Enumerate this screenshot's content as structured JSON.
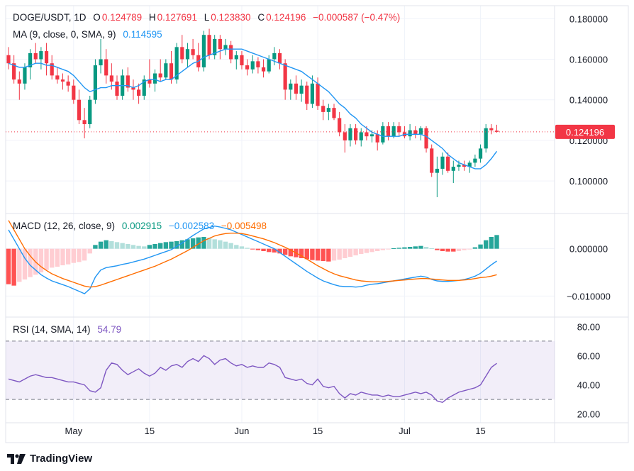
{
  "header": {
    "symbol": "DOGE/USDT, 1D",
    "open_label": "O",
    "open": "0.124789",
    "high_label": "H",
    "high": "0.127691",
    "low_label": "L",
    "low": "0.123830",
    "close_label": "C",
    "close": "0.124196",
    "change": "−0.000587 (−0.47%)"
  },
  "ma_legend": {
    "label": "MA (9, close, 0, SMA, 9)",
    "value": "0.114595"
  },
  "macd_legend": {
    "label": "MACD (12, 26, close, 9)",
    "hist": "0.002915",
    "macd": "−0.002583",
    "signal": "−0.005498"
  },
  "rsi_legend": {
    "label": "RSI (14, SMA, 14)",
    "value": "54.79"
  },
  "price_axis": {
    "ticks": [
      "0.180000",
      "0.160000",
      "0.140000",
      "0.120000",
      "0.100000"
    ],
    "last_price": "0.124196"
  },
  "macd_axis": {
    "ticks": [
      "0.000000",
      "−0.010000"
    ]
  },
  "rsi_axis": {
    "ticks": [
      "80.00",
      "60.00",
      "40.00",
      "20.00"
    ]
  },
  "time_axis": {
    "ticks": [
      "May",
      "15",
      "Jun",
      "15",
      "Jul",
      "15"
    ]
  },
  "brand": {
    "name": "TradingView"
  },
  "colors": {
    "up": "#089981",
    "down": "#f23645",
    "ma": "#2196f3",
    "macd": "#2196f3",
    "signal": "#ff6d00",
    "rsi": "#7e57c2"
  },
  "chart_data": [
    {
      "type": "candlestick",
      "price_range": [
        0.085,
        0.185
      ],
      "x_start": "2024-04-19",
      "candles": [
        [
          0.162,
          0.166,
          0.155,
          0.158
        ],
        [
          0.158,
          0.162,
          0.148,
          0.15
        ],
        [
          0.15,
          0.154,
          0.14,
          0.148
        ],
        [
          0.148,
          0.158,
          0.145,
          0.156
        ],
        [
          0.156,
          0.165,
          0.15,
          0.163
        ],
        [
          0.163,
          0.168,
          0.158,
          0.16
        ],
        [
          0.16,
          0.166,
          0.155,
          0.164
        ],
        [
          0.164,
          0.168,
          0.152,
          0.158
        ],
        [
          0.158,
          0.162,
          0.15,
          0.152
        ],
        [
          0.152,
          0.156,
          0.148,
          0.15
        ],
        [
          0.15,
          0.153,
          0.145,
          0.149
        ],
        [
          0.149,
          0.152,
          0.144,
          0.147
        ],
        [
          0.147,
          0.15,
          0.138,
          0.14
        ],
        [
          0.14,
          0.145,
          0.128,
          0.13
        ],
        [
          0.13,
          0.136,
          0.121,
          0.128
        ],
        [
          0.128,
          0.142,
          0.126,
          0.14
        ],
        [
          0.14,
          0.16,
          0.138,
          0.157
        ],
        [
          0.157,
          0.17,
          0.153,
          0.16
        ],
        [
          0.16,
          0.165,
          0.148,
          0.152
        ],
        [
          0.152,
          0.158,
          0.145,
          0.149
        ],
        [
          0.149,
          0.152,
          0.14,
          0.142
        ],
        [
          0.142,
          0.155,
          0.14,
          0.152
        ],
        [
          0.152,
          0.156,
          0.144,
          0.146
        ],
        [
          0.146,
          0.15,
          0.14,
          0.145
        ],
        [
          0.145,
          0.148,
          0.138,
          0.142
        ],
        [
          0.142,
          0.152,
          0.14,
          0.15
        ],
        [
          0.15,
          0.16,
          0.146,
          0.148
        ],
        [
          0.148,
          0.155,
          0.144,
          0.153
        ],
        [
          0.153,
          0.16,
          0.149,
          0.151
        ],
        [
          0.151,
          0.16,
          0.15,
          0.158
        ],
        [
          0.158,
          0.164,
          0.148,
          0.15
        ],
        [
          0.15,
          0.168,
          0.148,
          0.166
        ],
        [
          0.166,
          0.172,
          0.158,
          0.16
        ],
        [
          0.16,
          0.168,
          0.156,
          0.165
        ],
        [
          0.165,
          0.17,
          0.16,
          0.162
        ],
        [
          0.162,
          0.168,
          0.154,
          0.156
        ],
        [
          0.156,
          0.174,
          0.154,
          0.172
        ],
        [
          0.172,
          0.175,
          0.16,
          0.162
        ],
        [
          0.162,
          0.172,
          0.16,
          0.17
        ],
        [
          0.17,
          0.172,
          0.16,
          0.165
        ],
        [
          0.165,
          0.17,
          0.162,
          0.167
        ],
        [
          0.167,
          0.169,
          0.158,
          0.16
        ],
        [
          0.16,
          0.164,
          0.155,
          0.162
        ],
        [
          0.162,
          0.164,
          0.155,
          0.157
        ],
        [
          0.157,
          0.16,
          0.152,
          0.155
        ],
        [
          0.155,
          0.162,
          0.153,
          0.159
        ],
        [
          0.159,
          0.161,
          0.153,
          0.156
        ],
        [
          0.156,
          0.16,
          0.151,
          0.154
        ],
        [
          0.154,
          0.162,
          0.153,
          0.16
        ],
        [
          0.16,
          0.166,
          0.157,
          0.163
        ],
        [
          0.163,
          0.165,
          0.155,
          0.158
        ],
        [
          0.158,
          0.16,
          0.14,
          0.145
        ],
        [
          0.145,
          0.15,
          0.14,
          0.148
        ],
        [
          0.148,
          0.152,
          0.14,
          0.143
        ],
        [
          0.143,
          0.15,
          0.139,
          0.147
        ],
        [
          0.147,
          0.149,
          0.135,
          0.138
        ],
        [
          0.138,
          0.152,
          0.136,
          0.148
        ],
        [
          0.148,
          0.151,
          0.135,
          0.137
        ],
        [
          0.137,
          0.14,
          0.13,
          0.134
        ],
        [
          0.134,
          0.138,
          0.13,
          0.136
        ],
        [
          0.136,
          0.138,
          0.13,
          0.131
        ],
        [
          0.131,
          0.134,
          0.122,
          0.124
        ],
        [
          0.124,
          0.128,
          0.114,
          0.12
        ],
        [
          0.12,
          0.128,
          0.117,
          0.126
        ],
        [
          0.126,
          0.128,
          0.118,
          0.12
        ],
        [
          0.12,
          0.126,
          0.117,
          0.124
        ],
        [
          0.124,
          0.127,
          0.12,
          0.122
        ],
        [
          0.122,
          0.125,
          0.119,
          0.123
        ],
        [
          0.123,
          0.125,
          0.115,
          0.119
        ],
        [
          0.119,
          0.129,
          0.118,
          0.127
        ],
        [
          0.127,
          0.129,
          0.12,
          0.122
        ],
        [
          0.122,
          0.129,
          0.121,
          0.127
        ],
        [
          0.127,
          0.129,
          0.122,
          0.124
        ],
        [
          0.124,
          0.127,
          0.121,
          0.122
        ],
        [
          0.122,
          0.128,
          0.12,
          0.125
        ],
        [
          0.125,
          0.127,
          0.121,
          0.123
        ],
        [
          0.123,
          0.127,
          0.12,
          0.126
        ],
        [
          0.126,
          0.127,
          0.114,
          0.116
        ],
        [
          0.116,
          0.118,
          0.102,
          0.104
        ],
        [
          0.104,
          0.112,
          0.092,
          0.106
        ],
        [
          0.106,
          0.114,
          0.103,
          0.112
        ],
        [
          0.112,
          0.114,
          0.104,
          0.105
        ],
        [
          0.105,
          0.11,
          0.099,
          0.107
        ],
        [
          0.107,
          0.11,
          0.105,
          0.108
        ],
        [
          0.108,
          0.11,
          0.105,
          0.107
        ],
        [
          0.107,
          0.11,
          0.104,
          0.109
        ],
        [
          0.109,
          0.113,
          0.107,
          0.111
        ],
        [
          0.111,
          0.118,
          0.109,
          0.116
        ],
        [
          0.116,
          0.128,
          0.114,
          0.126
        ],
        [
          0.126,
          0.128,
          0.123,
          0.125
        ],
        [
          0.124789,
          0.127691,
          0.12383,
          0.124196
        ]
      ],
      "ma_values": [
        0.158,
        0.157,
        0.156,
        0.156,
        0.157,
        0.158,
        0.158,
        0.157,
        0.157,
        0.156,
        0.155,
        0.154,
        0.152,
        0.149,
        0.146,
        0.144,
        0.145,
        0.146,
        0.146,
        0.147,
        0.147,
        0.147,
        0.147,
        0.146,
        0.147,
        0.149,
        0.15,
        0.15,
        0.149,
        0.15,
        0.15,
        0.152,
        0.154,
        0.156,
        0.158,
        0.159,
        0.161,
        0.162,
        0.163,
        0.164,
        0.165,
        0.165,
        0.165,
        0.165,
        0.164,
        0.163,
        0.162,
        0.161,
        0.16,
        0.159,
        0.158,
        0.157,
        0.156,
        0.155,
        0.154,
        0.152,
        0.15,
        0.148,
        0.146,
        0.144,
        0.141,
        0.138,
        0.136,
        0.133,
        0.131,
        0.128,
        0.126,
        0.124,
        0.123,
        0.122,
        0.122,
        0.122,
        0.122,
        0.123,
        0.123,
        0.123,
        0.123,
        0.122,
        0.12,
        0.118,
        0.116,
        0.113,
        0.111,
        0.109,
        0.108,
        0.107,
        0.106,
        0.106,
        0.108,
        0.111,
        0.1146
      ],
      "last_price": 0.124196
    },
    {
      "type": "macd",
      "range": [
        -0.014,
        0.007
      ],
      "histogram": [
        -0.0075,
        -0.0078,
        -0.007,
        -0.0065,
        -0.006,
        -0.0055,
        -0.005,
        -0.0045,
        -0.004,
        -0.0038,
        -0.0035,
        -0.0033,
        -0.003,
        -0.0028,
        -0.0025,
        -0.001,
        0.0008,
        0.0015,
        0.0018,
        0.0016,
        0.0014,
        0.0012,
        0.001,
        0.0008,
        0.0006,
        0.0005,
        0.0008,
        0.001,
        0.0012,
        0.0014,
        0.0015,
        0.0016,
        0.0018,
        0.002,
        0.0022,
        0.0024,
        0.0025,
        0.0023,
        0.002,
        0.0018,
        0.0015,
        0.0012,
        0.0008,
        0.0005,
        0.0002,
        -0.0001,
        -0.0003,
        -0.0005,
        -0.0007,
        -0.0008,
        -0.001,
        -0.0013,
        -0.0016,
        -0.0018,
        -0.002,
        -0.0022,
        -0.0024,
        -0.0025,
        -0.0026,
        -0.0027,
        -0.0025,
        -0.0023,
        -0.002,
        -0.0017,
        -0.0014,
        -0.0011,
        -0.0009,
        -0.0007,
        -0.0005,
        -0.0003,
        -0.0001,
        0.0001,
        0.0002,
        0.0003,
        0.0004,
        0.0005,
        0.0006,
        0.0004,
        0.0001,
        -0.0003,
        -0.0005,
        -0.0006,
        -0.0006,
        -0.0005,
        -0.0003,
        -0.0001,
        0.0003,
        0.0009,
        0.0018,
        0.0025,
        0.0029
      ],
      "macd_values": [
        0.004,
        0.002,
        0.0,
        -0.002,
        -0.0035,
        -0.0045,
        -0.0055,
        -0.0062,
        -0.0068,
        -0.0072,
        -0.0076,
        -0.008,
        -0.0085,
        -0.009,
        -0.0095,
        -0.0085,
        -0.006,
        -0.0045,
        -0.004,
        -0.0038,
        -0.0036,
        -0.0033,
        -0.0031,
        -0.0028,
        -0.0025,
        -0.0022,
        -0.0018,
        -0.0014,
        -0.001,
        -0.0006,
        -0.0002,
        0.0005,
        0.0012,
        0.002,
        0.0028,
        0.0035,
        0.0042,
        0.0045,
        0.0048,
        0.0046,
        0.0043,
        0.004,
        0.0035,
        0.003,
        0.0025,
        0.002,
        0.0015,
        0.001,
        0.0005,
        0.0,
        -0.0008,
        -0.0016,
        -0.0024,
        -0.0032,
        -0.004,
        -0.0048,
        -0.0055,
        -0.0062,
        -0.0068,
        -0.0072,
        -0.0076,
        -0.0079,
        -0.008,
        -0.008,
        -0.0081,
        -0.008,
        -0.0077,
        -0.0075,
        -0.0074,
        -0.0072,
        -0.007,
        -0.0068,
        -0.0066,
        -0.0064,
        -0.0062,
        -0.006,
        -0.0058,
        -0.006,
        -0.0065,
        -0.0068,
        -0.0069,
        -0.0069,
        -0.0068,
        -0.0067,
        -0.0065,
        -0.0062,
        -0.0058,
        -0.0052,
        -0.0043,
        -0.0034,
        -0.0026
      ],
      "signal_values": [
        0.006,
        0.004,
        0.002,
        0.0,
        -0.0015,
        -0.0028,
        -0.0038,
        -0.0046,
        -0.0053,
        -0.0058,
        -0.0063,
        -0.0067,
        -0.0071,
        -0.0075,
        -0.0079,
        -0.0081,
        -0.008,
        -0.0077,
        -0.0073,
        -0.0069,
        -0.0065,
        -0.0061,
        -0.0057,
        -0.0053,
        -0.0049,
        -0.0045,
        -0.0041,
        -0.0037,
        -0.0032,
        -0.0027,
        -0.0022,
        -0.0016,
        -0.001,
        -0.0004,
        0.0003,
        0.001,
        0.0017,
        0.0022,
        0.0027,
        0.003,
        0.0032,
        0.0033,
        0.0033,
        0.0032,
        0.003,
        0.0027,
        0.0024,
        0.0021,
        0.0017,
        0.0013,
        0.0008,
        0.0003,
        -0.0003,
        -0.0009,
        -0.0015,
        -0.0022,
        -0.0029,
        -0.0036,
        -0.0042,
        -0.0048,
        -0.0053,
        -0.0057,
        -0.006,
        -0.0063,
        -0.0066,
        -0.0068,
        -0.0069,
        -0.007,
        -0.007,
        -0.007,
        -0.0069,
        -0.0068,
        -0.0067,
        -0.0066,
        -0.0065,
        -0.0064,
        -0.0063,
        -0.0063,
        -0.0064,
        -0.0065,
        -0.0066,
        -0.0067,
        -0.0067,
        -0.0067,
        -0.0066,
        -0.0065,
        -0.0063,
        -0.0061,
        -0.006,
        -0.0058,
        -0.0055
      ]
    },
    {
      "type": "rsi",
      "range": [
        15,
        85
      ],
      "band": [
        30,
        70
      ],
      "values": [
        44,
        43,
        42,
        44,
        46,
        47,
        46,
        45,
        45,
        44,
        43,
        42,
        42,
        41,
        40,
        36,
        35,
        38,
        50,
        55,
        54,
        50,
        47,
        49,
        51,
        48,
        46,
        48,
        52,
        50,
        53,
        54,
        52,
        56,
        58,
        56,
        60,
        58,
        54,
        57,
        58,
        55,
        53,
        54,
        52,
        53,
        52,
        52,
        55,
        54,
        52,
        45,
        44,
        43,
        44,
        41,
        40,
        44,
        39,
        38,
        39,
        34,
        31,
        34,
        33,
        35,
        34,
        33,
        33,
        32,
        33,
        32,
        32,
        33,
        34,
        35,
        34,
        35,
        33,
        29,
        28,
        31,
        33,
        35,
        36,
        37,
        38,
        40,
        46,
        52,
        54.79
      ]
    }
  ]
}
